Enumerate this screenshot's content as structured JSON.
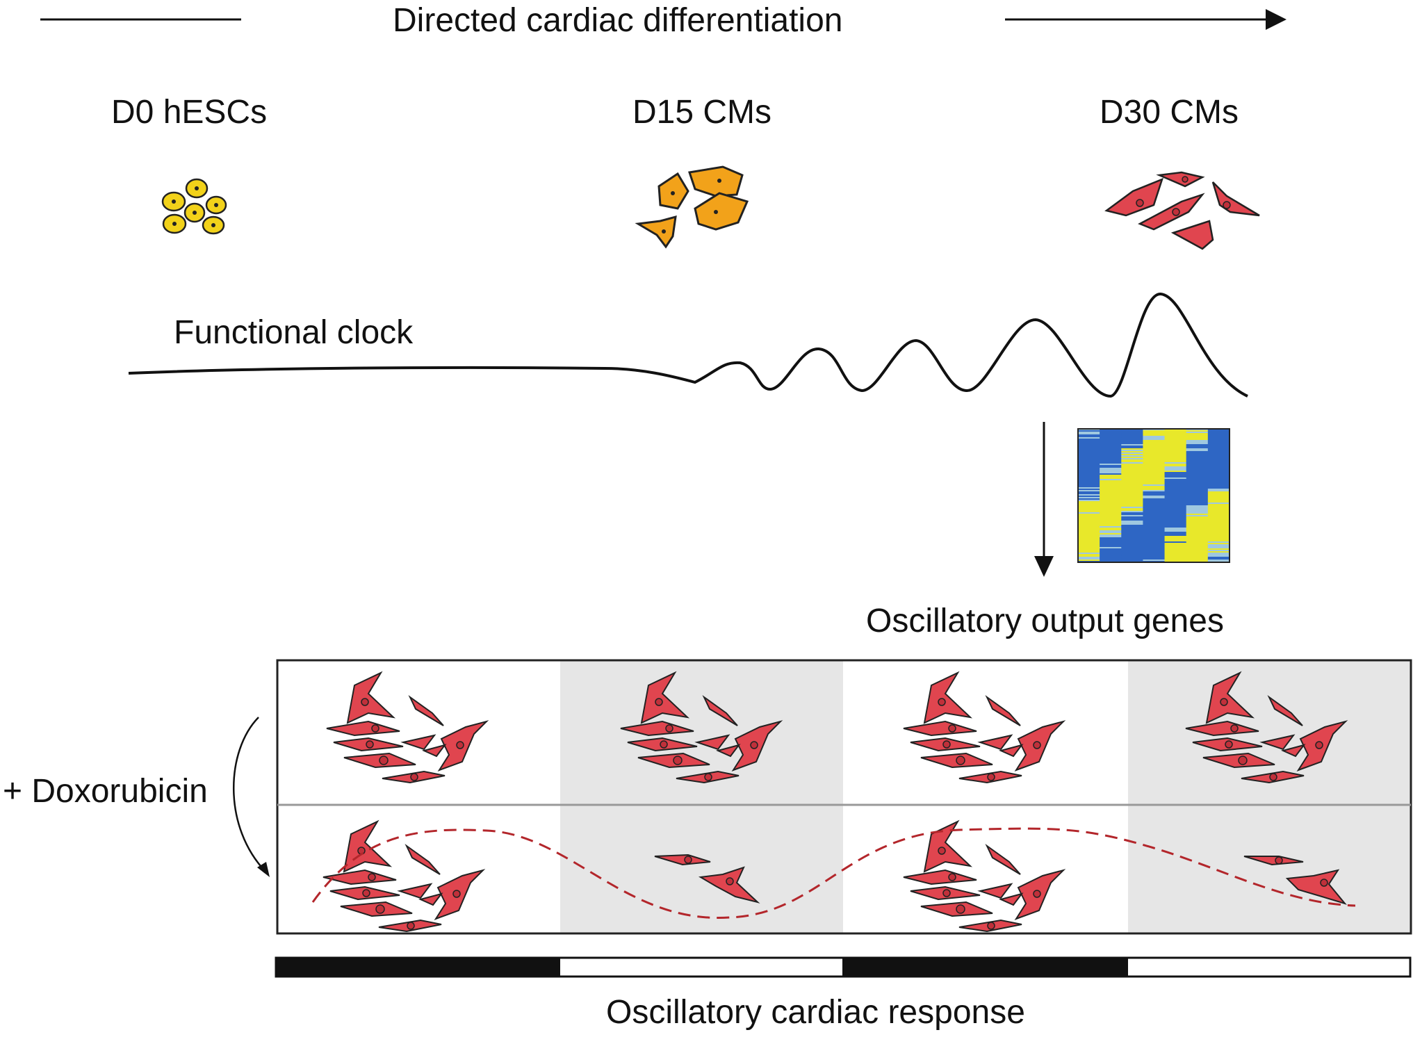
{
  "header": {
    "title": "Directed cardiac differentiation"
  },
  "stages": [
    {
      "label": "D0 hESCs"
    },
    {
      "label": "D15 CMs"
    },
    {
      "label": "D30 CMs"
    }
  ],
  "clock": {
    "label": "Functional clock"
  },
  "genes": {
    "label": "Oscillatory output genes"
  },
  "treatment": {
    "label": "+ Doxorubicin"
  },
  "response": {
    "label": "Oscillatory cardiac response"
  },
  "colors": {
    "hesc": "#f2d21a",
    "d15": "#f2a21a",
    "cm": "#e0454f",
    "cm_nucleus": "#c0303a",
    "dash": "#b3262b",
    "panel_gray": "#e6e6e6",
    "heat_blue": "#2e66c4",
    "heat_yellow": "#e8e82a"
  }
}
